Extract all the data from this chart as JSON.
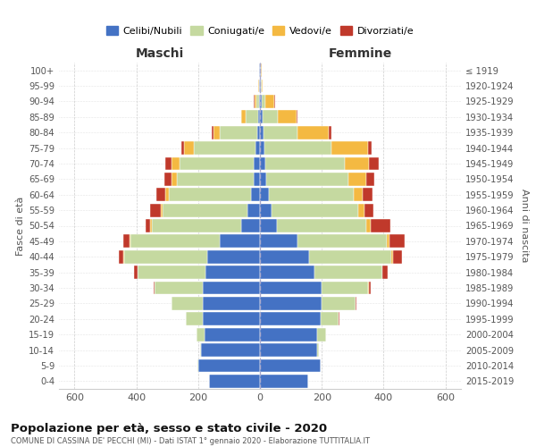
{
  "age_groups": [
    "0-4",
    "5-9",
    "10-14",
    "15-19",
    "20-24",
    "25-29",
    "30-34",
    "35-39",
    "40-44",
    "45-49",
    "50-54",
    "55-59",
    "60-64",
    "65-69",
    "70-74",
    "75-79",
    "80-84",
    "85-89",
    "90-94",
    "95-99",
    "100+"
  ],
  "birth_years": [
    "2015-2019",
    "2010-2014",
    "2005-2009",
    "2000-2004",
    "1995-1999",
    "1990-1994",
    "1985-1989",
    "1980-1984",
    "1975-1979",
    "1970-1974",
    "1965-1969",
    "1960-1964",
    "1955-1959",
    "1950-1954",
    "1945-1949",
    "1940-1944",
    "1935-1939",
    "1930-1934",
    "1925-1929",
    "1920-1924",
    "≤ 1919"
  ],
  "male": {
    "single": [
      165,
      200,
      190,
      180,
      185,
      185,
      185,
      175,
      170,
      130,
      60,
      40,
      30,
      20,
      20,
      15,
      10,
      5,
      3,
      2,
      2
    ],
    "married": [
      0,
      2,
      5,
      25,
      55,
      100,
      155,
      220,
      270,
      290,
      290,
      275,
      265,
      250,
      240,
      200,
      120,
      40,
      10,
      2,
      1
    ],
    "widowed": [
      0,
      0,
      0,
      0,
      0,
      0,
      0,
      1,
      2,
      3,
      5,
      5,
      10,
      15,
      25,
      30,
      20,
      15,
      5,
      1,
      0
    ],
    "divorced": [
      0,
      0,
      0,
      0,
      1,
      2,
      5,
      10,
      15,
      20,
      15,
      35,
      30,
      25,
      20,
      8,
      5,
      2,
      1,
      0,
      0
    ]
  },
  "female": {
    "single": [
      155,
      195,
      185,
      185,
      195,
      200,
      200,
      175,
      160,
      120,
      55,
      38,
      28,
      20,
      18,
      15,
      12,
      8,
      5,
      3,
      2
    ],
    "married": [
      0,
      2,
      5,
      28,
      60,
      110,
      150,
      220,
      265,
      290,
      290,
      280,
      275,
      265,
      255,
      215,
      110,
      50,
      12,
      2,
      1
    ],
    "widowed": [
      0,
      0,
      0,
      0,
      0,
      0,
      1,
      2,
      5,
      8,
      12,
      20,
      30,
      60,
      80,
      120,
      100,
      60,
      30,
      5,
      2
    ],
    "divorced": [
      0,
      0,
      0,
      0,
      1,
      3,
      8,
      15,
      30,
      50,
      65,
      30,
      30,
      25,
      30,
      10,
      8,
      3,
      1,
      0,
      0
    ]
  },
  "colors": {
    "single": "#4472C4",
    "married": "#c5d9a0",
    "widowed": "#F4B942",
    "divorced": "#C0392B"
  },
  "legend_labels": [
    "Celibi/Nubili",
    "Coniugati/e",
    "Vedovi/e",
    "Divorziati/e"
  ],
  "title": "Popolazione per età, sesso e stato civile - 2020",
  "subtitle": "COMUNE DI CASSINA DE' PECCHI (MI) - Dati ISTAT 1° gennaio 2020 - Elaborazione TUTTITALIA.IT",
  "xlabel_left": "Maschi",
  "xlabel_right": "Femmine",
  "ylabel_left": "Fasce di età",
  "ylabel_right": "Anni di nascita",
  "xlim": 650,
  "background_color": "#ffffff",
  "grid_color": "#cccccc"
}
